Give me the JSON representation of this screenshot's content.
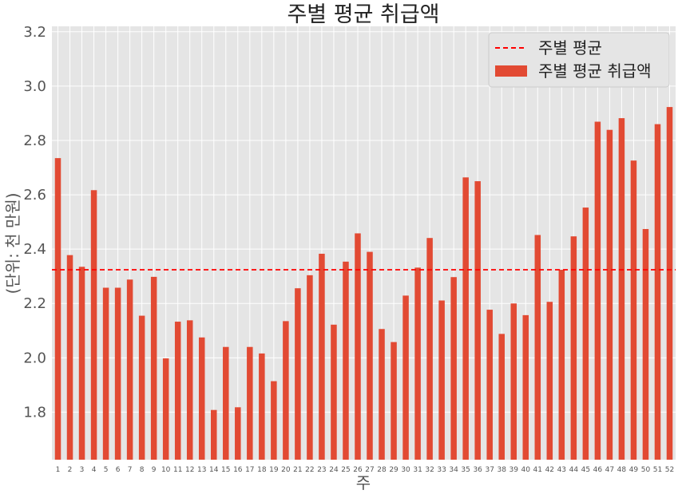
{
  "chart_data": {
    "type": "bar",
    "title": "주별 평균 취급액",
    "xlabel": "주",
    "ylabel": "(단위: 천 만원)",
    "categories": [
      "1",
      "2",
      "3",
      "4",
      "5",
      "6",
      "7",
      "8",
      "9",
      "10",
      "11",
      "12",
      "13",
      "14",
      "15",
      "16",
      "17",
      "18",
      "19",
      "20",
      "21",
      "22",
      "23",
      "24",
      "25",
      "26",
      "27",
      "28",
      "29",
      "30",
      "31",
      "32",
      "33",
      "34",
      "35",
      "36",
      "37",
      "38",
      "39",
      "40",
      "41",
      "42",
      "43",
      "44",
      "45",
      "46",
      "47",
      "48",
      "49",
      "50",
      "51",
      "52"
    ],
    "series": [
      {
        "name": "주별 평균 취급액",
        "color": "#e24a33",
        "values": [
          2.735,
          2.378,
          2.335,
          2.617,
          2.258,
          2.258,
          2.288,
          2.155,
          2.298,
          1.998,
          2.133,
          2.138,
          2.075,
          1.808,
          2.04,
          1.818,
          2.04,
          2.016,
          1.914,
          2.135,
          2.256,
          2.304,
          2.383,
          2.122,
          2.354,
          2.458,
          2.39,
          2.106,
          2.058,
          2.229,
          2.332,
          2.441,
          2.211,
          2.297,
          2.664,
          2.65,
          2.177,
          2.088,
          2.2,
          2.157,
          2.452,
          2.206,
          2.324,
          2.447,
          2.553,
          2.869,
          2.839,
          2.882,
          2.726,
          2.474,
          2.86,
          2.923
        ]
      }
    ],
    "reference_line": {
      "name": "주별 평균",
      "value": 2.324,
      "color": "#ff0000",
      "style": "dashed"
    },
    "ylim": [
      1.625,
      3.22
    ],
    "yticks": [
      1.8,
      2.0,
      2.2,
      2.4,
      2.6,
      2.8,
      3.0,
      3.2
    ],
    "grid": true,
    "legend": {
      "placement": "top-right",
      "entries": [
        "주별 평균",
        "주별 평균 취급액"
      ]
    }
  }
}
